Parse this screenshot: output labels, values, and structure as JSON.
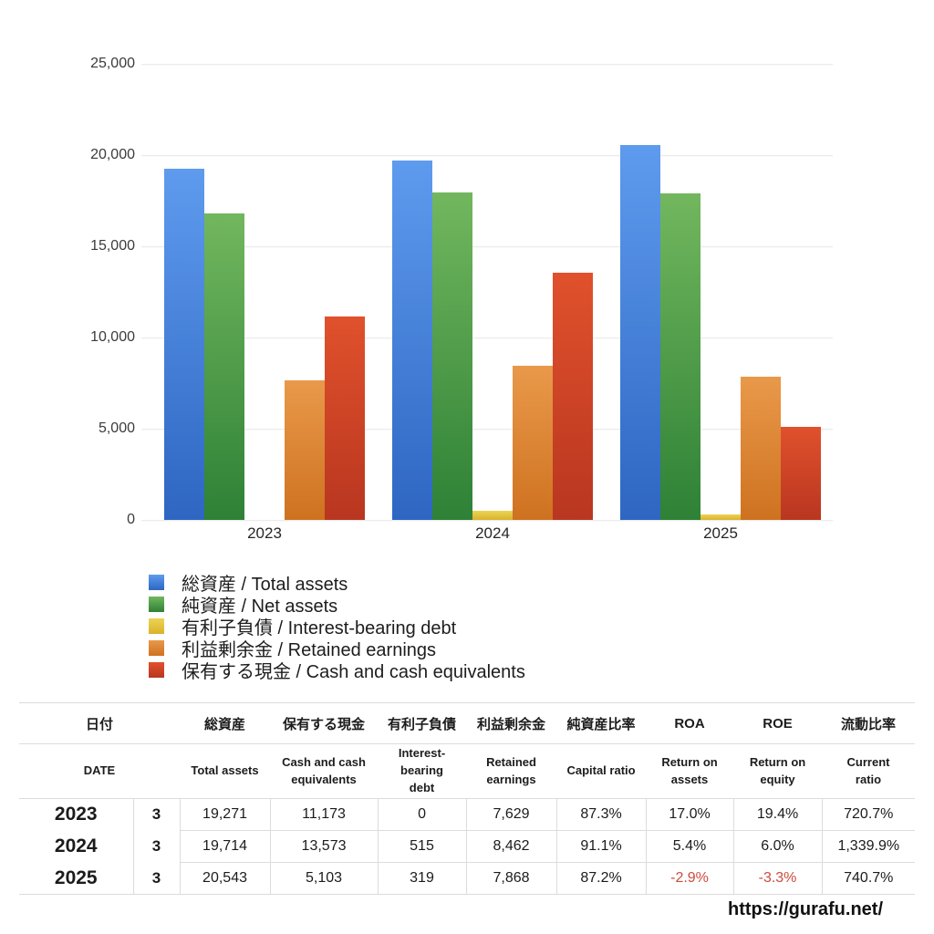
{
  "chart_data": {
    "type": "bar",
    "categories": [
      "2023",
      "2024",
      "2025"
    ],
    "series": [
      {
        "name": "総資産 / Total assets",
        "values": [
          19271,
          19714,
          20543
        ],
        "color_top": "#5e9bee",
        "color_bottom": "#2e66c2"
      },
      {
        "name": "純資産 / Net assets",
        "values": [
          16824,
          17960,
          17914
        ],
        "color_top": "#72b75e",
        "color_bottom": "#2e8136"
      },
      {
        "name": "有利子負債 / Interest-bearing debt",
        "values": [
          0,
          515,
          319
        ],
        "color_top": "#ecd455",
        "color_bottom": "#d9b22c"
      },
      {
        "name": "利益剰余金 / Retained earnings",
        "values": [
          7629,
          8462,
          7868
        ],
        "color_top": "#e9994a",
        "color_bottom": "#ce7220"
      },
      {
        "name": "保有する現金 /  Cash and cash equivalents",
        "values": [
          11173,
          13573,
          5103
        ],
        "color_top": "#e0512c",
        "color_bottom": "#b93620"
      }
    ],
    "title": "",
    "xlabel": "",
    "ylabel": "",
    "ylim": [
      0,
      25000
    ],
    "ytick_interval": 5000,
    "ytick_labels": [
      "0",
      "5,000",
      "10,000",
      "15,000",
      "20,000",
      "25,000"
    ],
    "grid": true,
    "legend_position": "bottom-left"
  },
  "table": {
    "header_jp": [
      "日付",
      "総資産",
      "保有する現金",
      "有利子負債",
      "利益剰余金",
      "純資産比率",
      "ROA",
      "ROE",
      "流動比率"
    ],
    "header_en": [
      "DATE",
      "Total assets",
      "Cash and cash equivalents",
      "Interest-bearing debt",
      "Retained earnings",
      "Capital ratio",
      "Return on assets",
      "Return on equity",
      "Current ratio"
    ],
    "rows": [
      {
        "year": "2023",
        "month": "3",
        "cells": [
          "19,271",
          "11,173",
          "0",
          "7,629",
          "87.3%",
          "17.0%",
          "19.4%",
          "720.7%"
        ],
        "negative": []
      },
      {
        "year": "2024",
        "month": "3",
        "cells": [
          "19,714",
          "13,573",
          "515",
          "8,462",
          "91.1%",
          "5.4%",
          "6.0%",
          "1,339.9%"
        ],
        "negative": []
      },
      {
        "year": "2025",
        "month": "3",
        "cells": [
          "20,543",
          "5,103",
          "319",
          "7,868",
          "87.2%",
          "-2.9%",
          "-3.3%",
          "740.7%"
        ],
        "negative": [
          5,
          6
        ]
      }
    ],
    "negative_color": "#cc4b3c"
  },
  "footer": {
    "url": "https://gurafu.net/"
  }
}
